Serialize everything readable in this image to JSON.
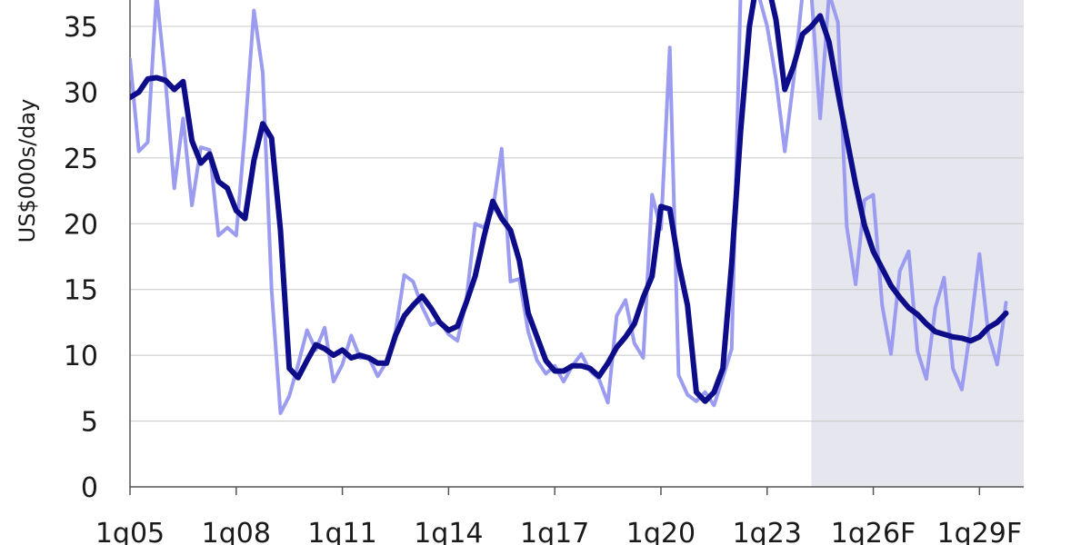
{
  "chart_data": {
    "type": "line",
    "ylabel": "US$000s/day",
    "ylim": [
      0,
      37
    ],
    "yticks": [
      0,
      5,
      10,
      15,
      20,
      25,
      30,
      35
    ],
    "xlim": [
      2005.0,
      2030.25
    ],
    "xticks": [
      {
        "x": 2005,
        "label": "1q05"
      },
      {
        "x": 2008,
        "label": "1q08"
      },
      {
        "x": 2011,
        "label": "1q11"
      },
      {
        "x": 2014,
        "label": "1q14"
      },
      {
        "x": 2017,
        "label": "1q17"
      },
      {
        "x": 2020,
        "label": "1q20"
      },
      {
        "x": 2023,
        "label": "1q23"
      },
      {
        "x": 2026,
        "label": "1q26F"
      },
      {
        "x": 2029,
        "label": "1q29F"
      }
    ],
    "grid": "horizontal",
    "forecast_region": {
      "x_start": 2024.25,
      "x_end": 2030.25,
      "color": "#e6e6ef"
    },
    "series": [
      {
        "color": "#9b9cf0",
        "points": [
          [
            2005.0,
            32.5
          ],
          [
            2005.25,
            25.5
          ],
          [
            2005.5,
            26.2
          ],
          [
            2005.75,
            37.5
          ],
          [
            2006.0,
            31.0
          ],
          [
            2006.25,
            22.7
          ],
          [
            2006.5,
            28.0
          ],
          [
            2006.75,
            21.4
          ],
          [
            2007.0,
            25.8
          ],
          [
            2007.25,
            25.6
          ],
          [
            2007.5,
            19.1
          ],
          [
            2007.75,
            19.7
          ],
          [
            2008.0,
            19.1
          ],
          [
            2008.25,
            27.0
          ],
          [
            2008.5,
            36.2
          ],
          [
            2008.75,
            31.5
          ],
          [
            2009.0,
            15.0
          ],
          [
            2009.25,
            5.6
          ],
          [
            2009.5,
            6.9
          ],
          [
            2009.75,
            9.3
          ],
          [
            2010.0,
            11.9
          ],
          [
            2010.25,
            10.4
          ],
          [
            2010.5,
            12.1
          ],
          [
            2010.75,
            8.0
          ],
          [
            2011.0,
            9.3
          ],
          [
            2011.25,
            11.5
          ],
          [
            2011.5,
            9.8
          ],
          [
            2011.75,
            9.8
          ],
          [
            2012.0,
            8.4
          ],
          [
            2012.25,
            9.5
          ],
          [
            2012.5,
            11.8
          ],
          [
            2012.75,
            16.1
          ],
          [
            2013.0,
            15.6
          ],
          [
            2013.25,
            13.7
          ],
          [
            2013.5,
            12.3
          ],
          [
            2013.75,
            12.6
          ],
          [
            2014.0,
            11.6
          ],
          [
            2014.25,
            11.1
          ],
          [
            2014.5,
            14.1
          ],
          [
            2014.75,
            20.0
          ],
          [
            2015.0,
            19.7
          ],
          [
            2015.25,
            21.0
          ],
          [
            2015.5,
            25.7
          ],
          [
            2015.75,
            15.6
          ],
          [
            2016.0,
            15.8
          ],
          [
            2016.25,
            11.8
          ],
          [
            2016.5,
            9.6
          ],
          [
            2016.75,
            8.6
          ],
          [
            2017.0,
            9.2
          ],
          [
            2017.25,
            8.0
          ],
          [
            2017.5,
            9.2
          ],
          [
            2017.75,
            10.1
          ],
          [
            2018.0,
            8.8
          ],
          [
            2018.25,
            8.2
          ],
          [
            2018.5,
            6.4
          ],
          [
            2018.75,
            13.0
          ],
          [
            2019.0,
            14.2
          ],
          [
            2019.25,
            10.9
          ],
          [
            2019.5,
            9.8
          ],
          [
            2019.75,
            22.2
          ],
          [
            2020.0,
            19.6
          ],
          [
            2020.25,
            33.4
          ],
          [
            2020.5,
            8.5
          ],
          [
            2020.75,
            7.0
          ],
          [
            2021.0,
            6.5
          ],
          [
            2021.25,
            7.2
          ],
          [
            2021.5,
            6.2
          ],
          [
            2021.75,
            8.3
          ],
          [
            2022.0,
            10.5
          ],
          [
            2022.25,
            37.5
          ],
          [
            2022.5,
            37.5
          ],
          [
            2022.75,
            37.5
          ],
          [
            2023.0,
            35.0
          ],
          [
            2023.25,
            31.0
          ],
          [
            2023.5,
            25.5
          ],
          [
            2023.75,
            31.0
          ],
          [
            2024.0,
            37.5
          ],
          [
            2024.25,
            37.5
          ],
          [
            2024.5,
            28.0
          ],
          [
            2024.75,
            37.5
          ],
          [
            2025.0,
            35.3
          ],
          [
            2025.25,
            19.8
          ],
          [
            2025.5,
            15.4
          ],
          [
            2025.75,
            21.8
          ],
          [
            2026.0,
            22.2
          ],
          [
            2026.25,
            13.8
          ],
          [
            2026.5,
            10.1
          ],
          [
            2026.75,
            16.4
          ],
          [
            2027.0,
            17.9
          ],
          [
            2027.25,
            10.3
          ],
          [
            2027.5,
            8.2
          ],
          [
            2027.75,
            13.6
          ],
          [
            2028.0,
            15.9
          ],
          [
            2028.25,
            9.0
          ],
          [
            2028.5,
            7.4
          ],
          [
            2028.75,
            12.1
          ],
          [
            2029.0,
            17.7
          ],
          [
            2029.25,
            11.6
          ],
          [
            2029.5,
            9.3
          ],
          [
            2029.75,
            14.0
          ]
        ]
      },
      {
        "color": "#0d0d8a",
        "points": [
          [
            2005.0,
            29.6
          ],
          [
            2005.25,
            30.0
          ],
          [
            2005.5,
            31.0
          ],
          [
            2005.75,
            31.1
          ],
          [
            2006.0,
            30.9
          ],
          [
            2006.25,
            30.2
          ],
          [
            2006.5,
            30.8
          ],
          [
            2006.75,
            26.3
          ],
          [
            2007.0,
            24.6
          ],
          [
            2007.25,
            25.3
          ],
          [
            2007.5,
            23.2
          ],
          [
            2007.75,
            22.7
          ],
          [
            2008.0,
            21.0
          ],
          [
            2008.25,
            20.4
          ],
          [
            2008.5,
            24.8
          ],
          [
            2008.75,
            27.6
          ],
          [
            2009.0,
            26.5
          ],
          [
            2009.25,
            19.5
          ],
          [
            2009.5,
            9.0
          ],
          [
            2009.75,
            8.3
          ],
          [
            2010.0,
            9.6
          ],
          [
            2010.25,
            10.8
          ],
          [
            2010.5,
            10.5
          ],
          [
            2010.75,
            10.0
          ],
          [
            2011.0,
            10.4
          ],
          [
            2011.25,
            9.8
          ],
          [
            2011.5,
            10.0
          ],
          [
            2011.75,
            9.8
          ],
          [
            2012.0,
            9.4
          ],
          [
            2012.25,
            9.4
          ],
          [
            2012.5,
            11.5
          ],
          [
            2012.75,
            13.0
          ],
          [
            2013.0,
            13.8
          ],
          [
            2013.25,
            14.5
          ],
          [
            2013.5,
            13.6
          ],
          [
            2013.75,
            12.5
          ],
          [
            2014.0,
            11.9
          ],
          [
            2014.25,
            12.2
          ],
          [
            2014.5,
            14.0
          ],
          [
            2014.75,
            16.0
          ],
          [
            2015.0,
            19.0
          ],
          [
            2015.25,
            21.7
          ],
          [
            2015.5,
            20.4
          ],
          [
            2015.75,
            19.5
          ],
          [
            2016.0,
            17.2
          ],
          [
            2016.25,
            13.2
          ],
          [
            2016.5,
            11.4
          ],
          [
            2016.75,
            9.6
          ],
          [
            2017.0,
            8.8
          ],
          [
            2017.25,
            8.8
          ],
          [
            2017.5,
            9.2
          ],
          [
            2017.75,
            9.2
          ],
          [
            2018.0,
            9.0
          ],
          [
            2018.25,
            8.4
          ],
          [
            2018.5,
            9.4
          ],
          [
            2018.75,
            10.6
          ],
          [
            2019.0,
            11.4
          ],
          [
            2019.25,
            12.4
          ],
          [
            2019.5,
            14.4
          ],
          [
            2019.75,
            16.0
          ],
          [
            2020.0,
            21.3
          ],
          [
            2020.25,
            21.1
          ],
          [
            2020.5,
            17.0
          ],
          [
            2020.75,
            13.8
          ],
          [
            2021.0,
            7.2
          ],
          [
            2021.25,
            6.5
          ],
          [
            2021.5,
            7.2
          ],
          [
            2021.75,
            9.0
          ],
          [
            2022.0,
            17.0
          ],
          [
            2022.25,
            27.0
          ],
          [
            2022.5,
            35.0
          ],
          [
            2022.75,
            39.0
          ],
          [
            2023.0,
            38.5
          ],
          [
            2023.25,
            35.5
          ],
          [
            2023.5,
            30.2
          ],
          [
            2023.75,
            32.0
          ],
          [
            2024.0,
            34.4
          ],
          [
            2024.25,
            35.0
          ],
          [
            2024.5,
            35.8
          ],
          [
            2024.75,
            33.8
          ],
          [
            2025.0,
            30.0
          ],
          [
            2025.25,
            26.5
          ],
          [
            2025.5,
            23.0
          ],
          [
            2025.75,
            19.9
          ],
          [
            2026.0,
            17.9
          ],
          [
            2026.25,
            16.6
          ],
          [
            2026.5,
            15.3
          ],
          [
            2026.75,
            14.4
          ],
          [
            2027.0,
            13.6
          ],
          [
            2027.25,
            13.1
          ],
          [
            2027.5,
            12.4
          ],
          [
            2027.75,
            11.8
          ],
          [
            2028.0,
            11.6
          ],
          [
            2028.25,
            11.4
          ],
          [
            2028.5,
            11.3
          ],
          [
            2028.75,
            11.1
          ],
          [
            2029.0,
            11.4
          ],
          [
            2029.25,
            12.1
          ],
          [
            2029.5,
            12.5
          ],
          [
            2029.75,
            13.2
          ]
        ]
      }
    ]
  }
}
